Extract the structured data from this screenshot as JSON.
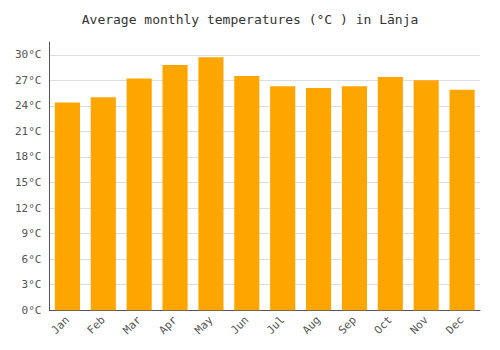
{
  "chart_data": {
    "type": "bar",
    "title": "Average monthly temperatures (°C ) in Lānja",
    "categories": [
      "Jan",
      "Feb",
      "Mar",
      "Apr",
      "May",
      "Jun",
      "Jul",
      "Aug",
      "Sep",
      "Oct",
      "Nov",
      "Dec"
    ],
    "values": [
      24.4,
      25.0,
      27.2,
      28.8,
      29.7,
      27.5,
      26.3,
      26.1,
      26.3,
      27.4,
      27.0,
      25.9
    ],
    "color": "#FFA500",
    "ylim": [
      0,
      31.5
    ],
    "yticks": [
      {
        "value": 0,
        "label": "0°C"
      },
      {
        "value": 3,
        "label": "3°C"
      },
      {
        "value": 6,
        "label": "6°C"
      },
      {
        "value": 9,
        "label": "9°C"
      },
      {
        "value": 12,
        "label": "12°C"
      },
      {
        "value": 15,
        "label": "15°C"
      },
      {
        "value": 18,
        "label": "18°C"
      },
      {
        "value": 21,
        "label": "21°C"
      },
      {
        "value": 24,
        "label": "24°C"
      },
      {
        "value": 27,
        "label": "27°C"
      },
      {
        "value": 30,
        "label": "30°C"
      }
    ],
    "grid": true
  }
}
